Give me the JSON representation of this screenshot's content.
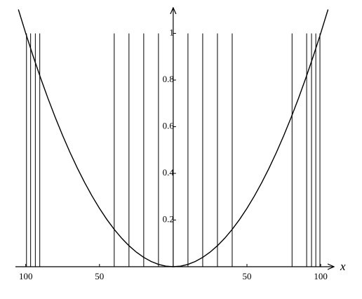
{
  "chart_data": {
    "type": "line",
    "xlabel": "x",
    "color": "#000000",
    "xlim": [
      -107,
      109
    ],
    "ylim": [
      0,
      1.11
    ],
    "xticks": [
      {
        "value": -100,
        "label": "100"
      },
      {
        "value": -50,
        "label": "50"
      },
      {
        "value": 50,
        "label": "50"
      },
      {
        "value": 100,
        "label": "100"
      }
    ],
    "yticks": [
      0.2,
      0.4,
      0.6,
      0.8,
      1
    ],
    "curve": {
      "x": [
        -105,
        -100,
        -95,
        -90,
        -85,
        -80,
        -75,
        -70,
        -65,
        -60,
        -55,
        -50,
        -45,
        -40,
        -35,
        -30,
        -25,
        -20,
        -15,
        -10,
        -5,
        0,
        5,
        10,
        15,
        20,
        25,
        30,
        35,
        40,
        45,
        50,
        55,
        60,
        65,
        70,
        75,
        80,
        85,
        90,
        95,
        100,
        105
      ],
      "values": [
        1.1025,
        1,
        0.9025,
        0.81,
        0.7225,
        0.64,
        0.5625,
        0.49,
        0.4225,
        0.36,
        0.3025,
        0.25,
        0.2025,
        0.16,
        0.1225,
        0.09,
        0.0625,
        0.04,
        0.0225,
        0.01,
        0.0025,
        0,
        0.0025,
        0.01,
        0.0225,
        0.04,
        0.0625,
        0.09,
        0.1225,
        0.16,
        0.2025,
        0.25,
        0.3025,
        0.36,
        0.4225,
        0.49,
        0.5625,
        0.64,
        0.7225,
        0.81,
        0.9025,
        1,
        1.1025
      ]
    },
    "verticals": {
      "x": [
        -99.5,
        -96.7,
        -93.5,
        -90.5,
        -40,
        -30,
        -20,
        -10,
        10,
        20,
        30,
        40,
        80.6,
        90.5,
        93.8,
        96.7,
        99.5
      ],
      "values": [
        1,
        1,
        1,
        1,
        1,
        1,
        1,
        1,
        1,
        1,
        1,
        1,
        1,
        1,
        1,
        1,
        1
      ]
    }
  }
}
